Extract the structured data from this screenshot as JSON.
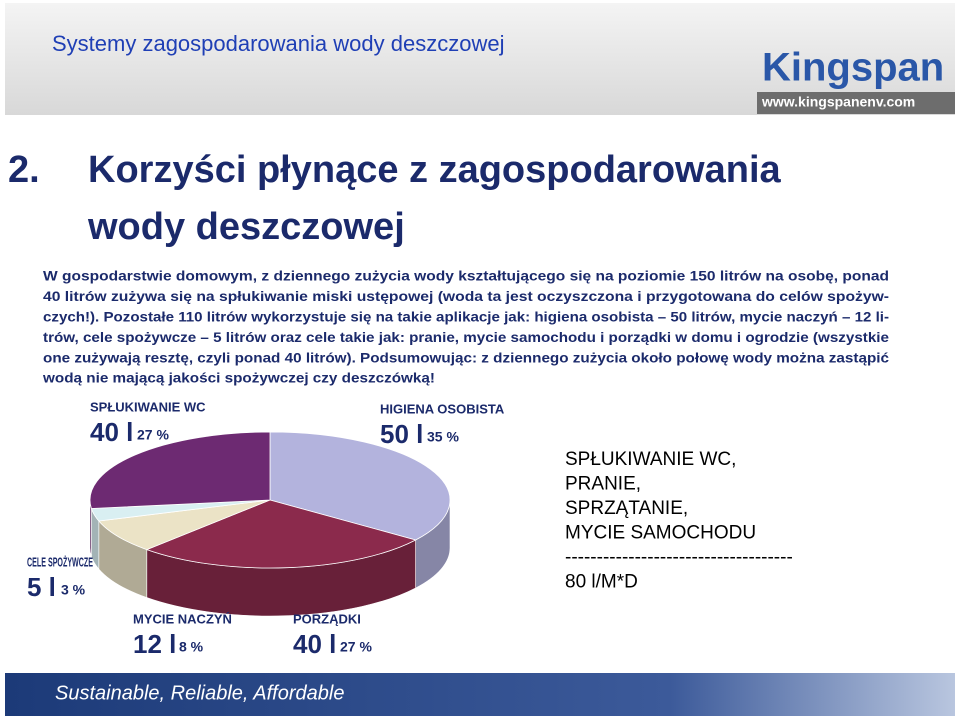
{
  "header": {
    "title": "Systemy zagospodarowania wody deszczowej",
    "logo": "Kingspan",
    "url": "www.kingspanenv.com"
  },
  "heading": {
    "number": "2.",
    "lines": [
      "Korzyści płynące z zagospodarowania",
      "wody deszczowej"
    ]
  },
  "body_lines": [
    "W gospodarstwie domowym, z dziennego zużycia wody kształtującego się na poziomie 150 litrów na osobę, ponad",
    "40 litrów zużywa się na spłukiwanie miski ustępowej (woda ta jest oczyszczona i przygotowana do celów spożyw-",
    "czych!). Pozostałe 110 litrów wykorzystuje się na takie aplikacje jak: higiena osobista – 50 litrów, mycie naczyń – 12 li-",
    "trów, cele spożywcze – 5 litrów oraz cele takie jak: pranie, mycie samochodu i porządki w domu i ogrodzie (wszystkie",
    "one zużywają resztę, czyli ponad 40 litrów). Podsumowując: z dziennego zużycia około połowę wody można zastąpić",
    "wodą nie mającą jakości spożywczej czy deszczówką!"
  ],
  "chart_data": {
    "type": "pie",
    "categories": [
      "HIGIENA OSOBISTA",
      "PORZĄDKI",
      "MYCIE NACZYŃ",
      "CELE SPOŻYWCZE",
      "SPŁUKIWANIE WC"
    ],
    "amounts": [
      "50 l",
      "40 l",
      "12 l",
      "5 l",
      "40 l"
    ],
    "values": [
      35,
      27,
      8,
      3,
      27
    ],
    "value_labels": [
      "35 %",
      "27 %",
      "8 %",
      "3 %",
      "27 %"
    ],
    "colors": [
      "#b3b3dd",
      "#8b2a4c",
      "#ebe3c6",
      "#d9eff2",
      "#6d2a72"
    ]
  },
  "note_lines": [
    "SPŁUKIWANIE WC,",
    "PRANIE,",
    "SPRZĄTANIE,",
    "MYCIE SAMOCHODU",
    "------------------------------------",
    "80 l/M*D"
  ],
  "footer": "Sustainable, Reliable, Affordable"
}
